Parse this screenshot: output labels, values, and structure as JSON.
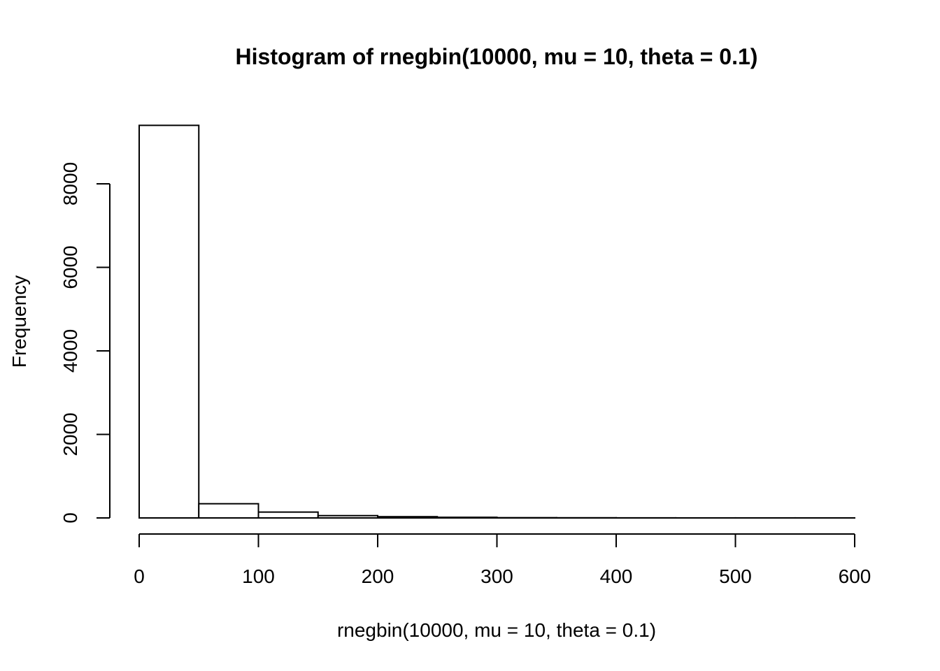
{
  "chart_data": {
    "type": "bar",
    "title": "Histogram of rnegbin(10000, mu = 10, theta = 0.1)",
    "xlabel": "rnegbin(10000, mu = 10, theta = 0.1)",
    "ylabel": "Frequency",
    "xlim": [
      0,
      600
    ],
    "ylim": [
      0,
      9400
    ],
    "x_ticks": [
      0,
      100,
      200,
      300,
      400,
      500,
      600
    ],
    "y_ticks": [
      0,
      2000,
      4000,
      6000,
      8000
    ],
    "bins": [
      {
        "start": 0,
        "end": 50,
        "value": 9400
      },
      {
        "start": 50,
        "end": 100,
        "value": 340
      },
      {
        "start": 100,
        "end": 150,
        "value": 140
      },
      {
        "start": 150,
        "end": 200,
        "value": 55
      },
      {
        "start": 200,
        "end": 250,
        "value": 30
      },
      {
        "start": 250,
        "end": 300,
        "value": 15
      },
      {
        "start": 300,
        "end": 350,
        "value": 6
      },
      {
        "start": 350,
        "end": 400,
        "value": 4
      },
      {
        "start": 400,
        "end": 450,
        "value": 2
      },
      {
        "start": 450,
        "end": 500,
        "value": 1
      },
      {
        "start": 500,
        "end": 550,
        "value": 1
      },
      {
        "start": 550,
        "end": 600,
        "value": 1
      }
    ],
    "grid": false
  }
}
